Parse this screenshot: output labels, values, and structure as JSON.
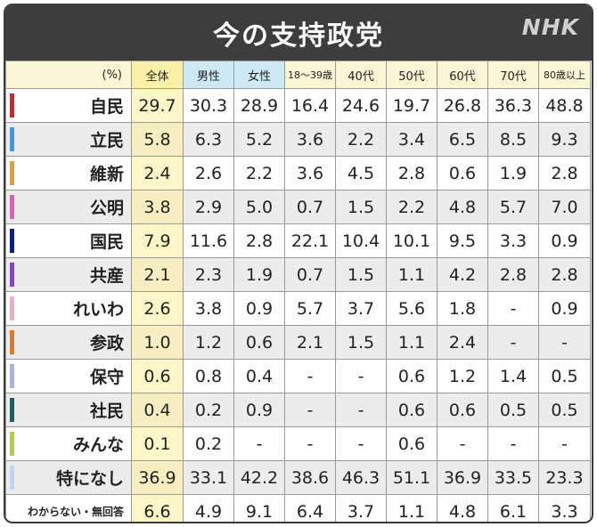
{
  "title": "今の支持政党",
  "logo": "NHK",
  "header": [
    "(%)",
    "全体",
    "男性",
    "女性",
    "18〜39歳",
    "40代",
    "50代",
    "60代",
    "70代",
    "80歳以上"
  ],
  "rows": [
    {
      "name": "自民",
      "color": "#d7222a",
      "values": [
        "29.7",
        "30.3",
        "28.9",
        "16.4",
        "24.6",
        "19.7",
        "26.8",
        "36.3",
        "48.8"
      ]
    },
    {
      "name": "立民",
      "color": "#2aa0e6",
      "values": [
        "5.8",
        "6.3",
        "5.2",
        "3.6",
        "2.2",
        "3.4",
        "6.5",
        "8.5",
        "9.3"
      ]
    },
    {
      "name": "維新",
      "color": "#e6a21e",
      "values": [
        "2.4",
        "2.6",
        "2.2",
        "3.6",
        "4.5",
        "2.8",
        "0.6",
        "1.9",
        "2.8"
      ]
    },
    {
      "name": "公明",
      "color": "#e05fb0",
      "values": [
        "3.8",
        "2.9",
        "5.0",
        "0.7",
        "1.5",
        "2.2",
        "4.8",
        "5.7",
        "7.0"
      ]
    },
    {
      "name": "国民",
      "color": "#0a1f8f",
      "values": [
        "7.9",
        "11.6",
        "2.8",
        "22.1",
        "10.4",
        "10.1",
        "9.5",
        "3.3",
        "0.9"
      ]
    },
    {
      "name": "共産",
      "color": "#8a3fd0",
      "values": [
        "2.1",
        "2.3",
        "1.9",
        "0.7",
        "1.5",
        "1.1",
        "4.2",
        "2.8",
        "2.8"
      ]
    },
    {
      "name": "れいわ",
      "color": "#f1aec0",
      "values": [
        "2.6",
        "3.8",
        "0.9",
        "5.7",
        "3.7",
        "5.6",
        "1.8",
        "-",
        "0.9"
      ]
    },
    {
      "name": "参政",
      "color": "#e8741c",
      "values": [
        "1.0",
        "1.2",
        "0.6",
        "2.1",
        "1.5",
        "1.1",
        "2.4",
        "-",
        "-"
      ]
    },
    {
      "name": "保守",
      "color": "#a9b0ee",
      "values": [
        "0.6",
        "0.8",
        "0.4",
        "-",
        "-",
        "0.6",
        "1.2",
        "1.4",
        "0.5"
      ]
    },
    {
      "name": "社民",
      "color": "#1c6161",
      "values": [
        "0.4",
        "0.2",
        "0.9",
        "-",
        "-",
        "0.6",
        "0.6",
        "0.5",
        "0.5"
      ]
    },
    {
      "name": "みんな",
      "color": "#b6d033",
      "values": [
        "0.1",
        "0.2",
        "-",
        "-",
        "-",
        "0.6",
        "-",
        "-",
        "-"
      ]
    },
    {
      "name": "特になし",
      "color": "#bcd6f4",
      "values": [
        "36.9",
        "33.1",
        "42.2",
        "38.6",
        "46.3",
        "51.1",
        "36.9",
        "33.5",
        "23.3"
      ]
    },
    {
      "name": "わからない・無回答",
      "color": "",
      "values": [
        "6.6",
        "4.9",
        "9.1",
        "6.4",
        "3.7",
        "1.1",
        "4.8",
        "6.1",
        "3.3"
      ]
    }
  ]
}
